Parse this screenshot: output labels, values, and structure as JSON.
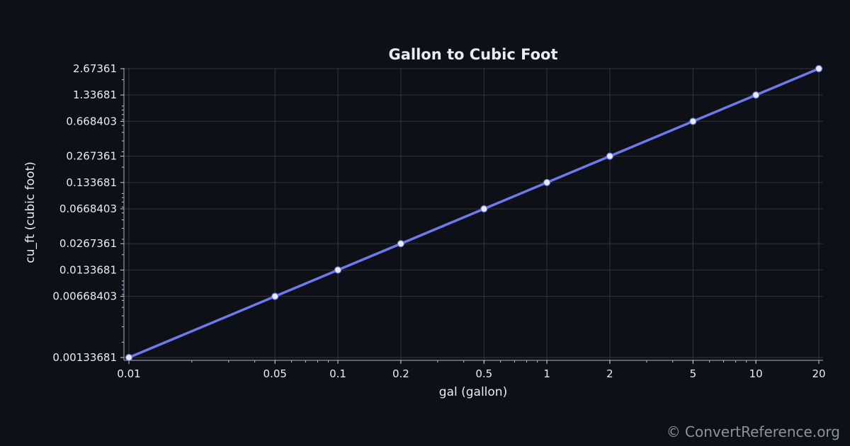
{
  "chart_data": {
    "type": "line",
    "title": "Gallon to Cubic Foot",
    "xlabel": "gal (gallon)",
    "ylabel": "cu_ft (cubic foot)",
    "x_scale": "log",
    "y_scale": "log",
    "xlim": [
      0.01,
      20
    ],
    "ylim": [
      0.00133681,
      2.67361
    ],
    "grid": true,
    "x_ticks": [
      {
        "value": 0.01,
        "label": "0.01"
      },
      {
        "value": 0.05,
        "label": "0.05"
      },
      {
        "value": 0.1,
        "label": "0.1"
      },
      {
        "value": 0.2,
        "label": "0.2"
      },
      {
        "value": 0.5,
        "label": "0.5"
      },
      {
        "value": 1,
        "label": "1"
      },
      {
        "value": 2,
        "label": "2"
      },
      {
        "value": 5,
        "label": "5"
      },
      {
        "value": 10,
        "label": "10"
      },
      {
        "value": 20,
        "label": "20"
      }
    ],
    "y_ticks": [
      {
        "value": 0.00133681,
        "label": "0.00133681"
      },
      {
        "value": 0.00668403,
        "label": "0.00668403"
      },
      {
        "value": 0.0133681,
        "label": "0.0133681"
      },
      {
        "value": 0.0267361,
        "label": "0.0267361"
      },
      {
        "value": 0.0668403,
        "label": "0.0668403"
      },
      {
        "value": 0.133681,
        "label": "0.133681"
      },
      {
        "value": 0.267361,
        "label": "0.267361"
      },
      {
        "value": 0.668403,
        "label": "0.668403"
      },
      {
        "value": 1.33681,
        "label": "1.33681"
      },
      {
        "value": 2.67361,
        "label": "2.67361"
      }
    ],
    "series": [
      {
        "color": "#6c7aed",
        "marker_color": "#e8ecf4",
        "x": [
          0.01,
          0.05,
          0.1,
          0.2,
          0.5,
          1,
          2,
          5,
          10,
          20
        ],
        "y": [
          0.00133681,
          0.00668403,
          0.0133681,
          0.0267361,
          0.0668403,
          0.133681,
          0.267361,
          0.668403,
          1.33681,
          2.67361
        ]
      }
    ]
  },
  "watermark": "© ConvertReference.org"
}
